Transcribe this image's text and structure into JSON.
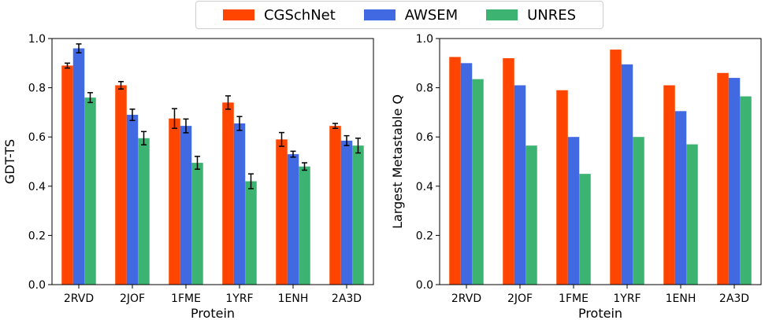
{
  "colors": {
    "CGSchNet": "#ff4500",
    "AWSEM": "#4169e1",
    "UNRES": "#3cb371"
  },
  "legend": {
    "position": "top-center",
    "entries": [
      "CGSchNet",
      "AWSEM",
      "UNRES"
    ]
  },
  "chart_data": [
    {
      "type": "bar",
      "xlabel": "Protein",
      "ylabel": "GDT-TS",
      "ylim": [
        0.0,
        1.0
      ],
      "yticks": [
        "0.0",
        "0.2",
        "0.4",
        "0.6",
        "0.8",
        "1.0"
      ],
      "grid": false,
      "categories": [
        "2RVD",
        "2JOF",
        "1FME",
        "1YRF",
        "1ENH",
        "2A3D"
      ],
      "series": [
        {
          "name": "CGSchNet",
          "values": [
            0.89,
            0.81,
            0.675,
            0.74,
            0.59,
            0.645
          ],
          "errors": [
            0.01,
            0.015,
            0.04,
            0.027,
            0.028,
            0.01
          ]
        },
        {
          "name": "AWSEM",
          "values": [
            0.96,
            0.69,
            0.645,
            0.655,
            0.53,
            0.585
          ],
          "errors": [
            0.018,
            0.023,
            0.028,
            0.028,
            0.012,
            0.02
          ]
        },
        {
          "name": "UNRES",
          "values": [
            0.76,
            0.595,
            0.495,
            0.42,
            0.48,
            0.565
          ],
          "errors": [
            0.02,
            0.027,
            0.026,
            0.03,
            0.015,
            0.03
          ]
        }
      ]
    },
    {
      "type": "bar",
      "xlabel": "Protein",
      "ylabel": "Largest Metastable Q",
      "ylim": [
        0.0,
        1.0
      ],
      "yticks": [
        "0.0",
        "0.2",
        "0.4",
        "0.6",
        "0.8",
        "1.0"
      ],
      "grid": false,
      "categories": [
        "2RVD",
        "2JOF",
        "1FME",
        "1YRF",
        "1ENH",
        "2A3D"
      ],
      "series": [
        {
          "name": "CGSchNet",
          "values": [
            0.925,
            0.92,
            0.79,
            0.955,
            0.81,
            0.86
          ]
        },
        {
          "name": "AWSEM",
          "values": [
            0.9,
            0.81,
            0.6,
            0.895,
            0.705,
            0.84
          ]
        },
        {
          "name": "UNRES",
          "values": [
            0.835,
            0.565,
            0.45,
            0.6,
            0.57,
            0.765
          ]
        }
      ]
    }
  ]
}
